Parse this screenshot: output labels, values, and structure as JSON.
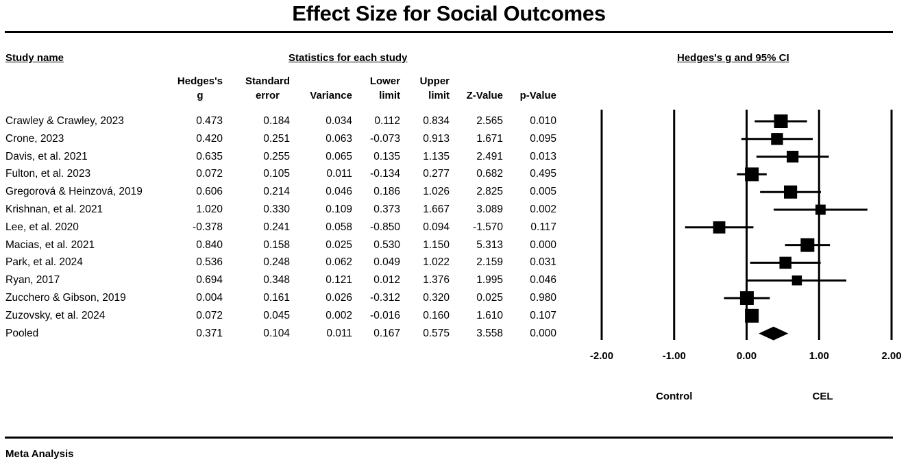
{
  "chart_data": {
    "type": "forest",
    "title": "Effect Size for Social Outcomes",
    "section_headers": {
      "study_name": "Study name",
      "statistics": "Statistics for each study",
      "plot": "Hedges's g and 95% CI"
    },
    "columns": [
      {
        "key": "g",
        "lines": [
          "Hedges's",
          "g"
        ]
      },
      {
        "key": "se",
        "lines": [
          "Standard",
          "error"
        ]
      },
      {
        "key": "var",
        "lines": [
          "Variance"
        ]
      },
      {
        "key": "lower",
        "lines": [
          "Lower",
          "limit"
        ]
      },
      {
        "key": "upper",
        "lines": [
          "Upper",
          "limit"
        ]
      },
      {
        "key": "z",
        "lines": [
          "Z-Value"
        ]
      },
      {
        "key": "p",
        "lines": [
          "p-Value"
        ]
      }
    ],
    "studies": [
      {
        "name": "Crawley & Crawley, 2023",
        "g": "0.473",
        "se": "0.184",
        "var": "0.034",
        "lower": "0.112",
        "upper": "0.834",
        "z": "2.565",
        "p": "0.010"
      },
      {
        "name": "Crone, 2023",
        "g": "0.420",
        "se": "0.251",
        "var": "0.063",
        "lower": "-0.073",
        "upper": "0.913",
        "z": "1.671",
        "p": "0.095"
      },
      {
        "name": "Davis, et al. 2021",
        "g": "0.635",
        "se": "0.255",
        "var": "0.065",
        "lower": "0.135",
        "upper": "1.135",
        "z": "2.491",
        "p": "0.013"
      },
      {
        "name": "Fulton, et al. 2023",
        "g": "0.072",
        "se": "0.105",
        "var": "0.011",
        "lower": "-0.134",
        "upper": "0.277",
        "z": "0.682",
        "p": "0.495"
      },
      {
        "name": "Gregorová & Heinzová, 2019",
        "g": "0.606",
        "se": "0.214",
        "var": "0.046",
        "lower": "0.186",
        "upper": "1.026",
        "z": "2.825",
        "p": "0.005"
      },
      {
        "name": "Krishnan, et al. 2021",
        "g": "1.020",
        "se": "0.330",
        "var": "0.109",
        "lower": "0.373",
        "upper": "1.667",
        "z": "3.089",
        "p": "0.002"
      },
      {
        "name": "Lee, et al. 2020",
        "g": "-0.378",
        "se": "0.241",
        "var": "0.058",
        "lower": "-0.850",
        "upper": "0.094",
        "z": "-1.570",
        "p": "0.117"
      },
      {
        "name": "Macias, et al. 2021",
        "g": "0.840",
        "se": "0.158",
        "var": "0.025",
        "lower": "0.530",
        "upper": "1.150",
        "z": "5.313",
        "p": "0.000"
      },
      {
        "name": "Park, et al. 2024",
        "g": "0.536",
        "se": "0.248",
        "var": "0.062",
        "lower": "0.049",
        "upper": "1.022",
        "z": "2.159",
        "p": "0.031"
      },
      {
        "name": "Ryan, 2017",
        "g": "0.694",
        "se": "0.348",
        "var": "0.121",
        "lower": "0.012",
        "upper": "1.376",
        "z": "1.995",
        "p": "0.046"
      },
      {
        "name": "Zucchero & Gibson, 2019",
        "g": "0.004",
        "se": "0.161",
        "var": "0.026",
        "lower": "-0.312",
        "upper": "0.320",
        "z": "0.025",
        "p": "0.980"
      },
      {
        "name": "Zuzovsky, et al. 2024",
        "g": "0.072",
        "se": "0.045",
        "var": "0.002",
        "lower": "-0.016",
        "upper": "0.160",
        "z": "1.610",
        "p": "0.107"
      }
    ],
    "pooled": {
      "name": "Pooled",
      "g": "0.371",
      "se": "0.104",
      "var": "0.011",
      "lower": "0.167",
      "upper": "0.575",
      "z": "3.558",
      "p": "0.000"
    },
    "x_axis": {
      "range": [
        -2,
        2
      ],
      "ticks": [
        -2,
        -1,
        0,
        1,
        2
      ],
      "tick_labels": [
        "-2.00",
        "-1.00",
        "0.00",
        "1.00",
        "2.00"
      ]
    },
    "direction_labels": {
      "left": "Control",
      "right": "CEL"
    },
    "footer": "Meta Analysis"
  }
}
